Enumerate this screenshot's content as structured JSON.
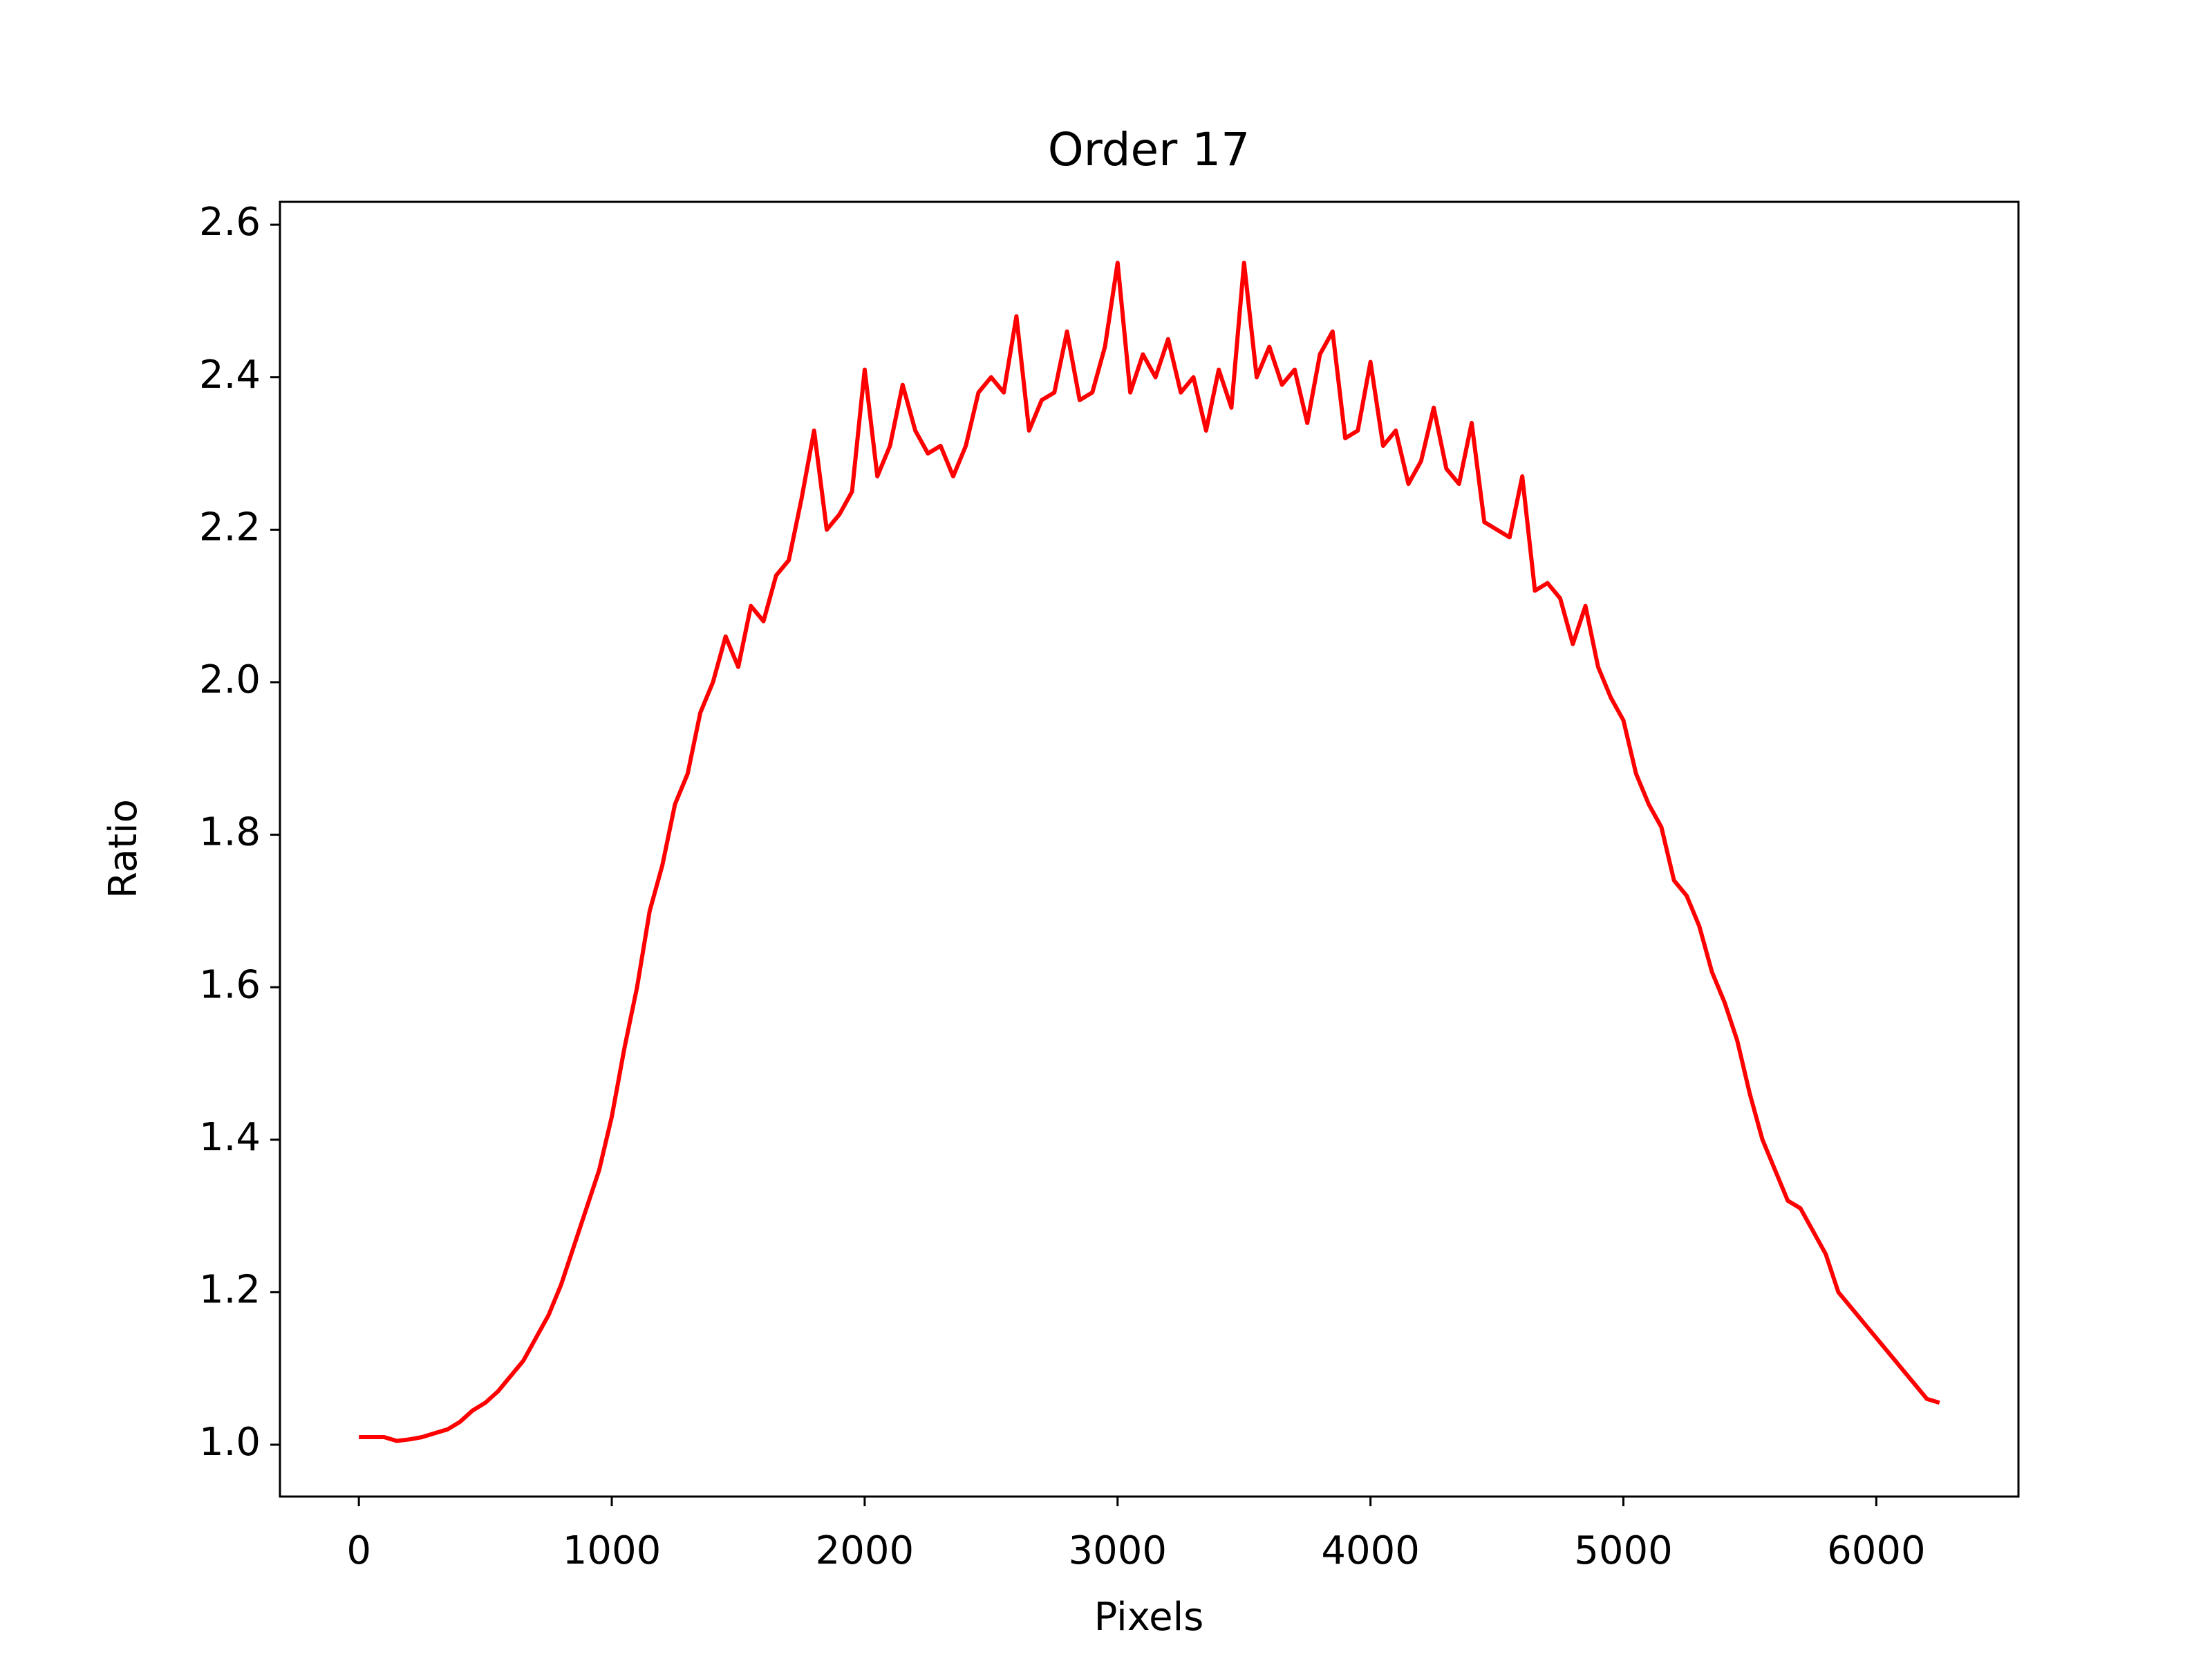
{
  "chart_data": {
    "type": "line",
    "title": "Order 17",
    "xlabel": "Pixels",
    "ylabel": "Ratio",
    "x": [
      0,
      50,
      100,
      150,
      200,
      250,
      300,
      350,
      400,
      450,
      500,
      550,
      600,
      650,
      700,
      750,
      800,
      850,
      900,
      950,
      1000,
      1050,
      1100,
      1150,
      1200,
      1250,
      1300,
      1350,
      1400,
      1450,
      1500,
      1550,
      1600,
      1650,
      1700,
      1750,
      1800,
      1850,
      1900,
      1950,
      2000,
      2050,
      2100,
      2150,
      2200,
      2250,
      2300,
      2350,
      2400,
      2450,
      2500,
      2550,
      2600,
      2650,
      2700,
      2750,
      2800,
      2850,
      2900,
      2950,
      3000,
      3050,
      3100,
      3150,
      3200,
      3250,
      3300,
      3350,
      3400,
      3450,
      3500,
      3550,
      3600,
      3650,
      3700,
      3750,
      3800,
      3850,
      3900,
      3950,
      4000,
      4050,
      4100,
      4150,
      4200,
      4250,
      4300,
      4350,
      4400,
      4450,
      4500,
      4550,
      4600,
      4650,
      4700,
      4750,
      4800,
      4850,
      4900,
      4950,
      5000,
      5050,
      5100,
      5150,
      5200,
      5250,
      5300,
      5350,
      5400,
      5450,
      5500,
      5550,
      5600,
      5650,
      5700,
      5750,
      5800,
      5850,
      5900,
      5950,
      6000,
      6050,
      6100,
      6150,
      6200,
      6250
    ],
    "series": [
      {
        "color": "#ff0000",
        "values": [
          1.01,
          1.01,
          1.01,
          1.005,
          1.007,
          1.01,
          1.015,
          1.02,
          1.03,
          1.045,
          1.055,
          1.07,
          1.09,
          1.11,
          1.14,
          1.17,
          1.21,
          1.26,
          1.31,
          1.36,
          1.43,
          1.52,
          1.6,
          1.7,
          1.76,
          1.84,
          1.88,
          1.96,
          2.0,
          2.06,
          2.02,
          2.1,
          2.08,
          2.14,
          2.16,
          2.24,
          2.33,
          2.2,
          2.22,
          2.25,
          2.41,
          2.27,
          2.31,
          2.39,
          2.33,
          2.3,
          2.31,
          2.27,
          2.31,
          2.38,
          2.4,
          2.38,
          2.48,
          2.33,
          2.37,
          2.38,
          2.46,
          2.37,
          2.38,
          2.44,
          2.55,
          2.38,
          2.43,
          2.4,
          2.45,
          2.38,
          2.4,
          2.33,
          2.41,
          2.36,
          2.55,
          2.4,
          2.44,
          2.39,
          2.41,
          2.34,
          2.43,
          2.46,
          2.32,
          2.33,
          2.42,
          2.31,
          2.33,
          2.26,
          2.29,
          2.36,
          2.28,
          2.26,
          2.34,
          2.21,
          2.2,
          2.19,
          2.27,
          2.12,
          2.13,
          2.11,
          2.05,
          2.1,
          2.02,
          1.98,
          1.95,
          1.88,
          1.84,
          1.81,
          1.74,
          1.72,
          1.68,
          1.62,
          1.58,
          1.53,
          1.46,
          1.4,
          1.36,
          1.32,
          1.31,
          1.28,
          1.25,
          1.2,
          1.18,
          1.16,
          1.14,
          1.12,
          1.1,
          1.08,
          1.06,
          1.055
        ]
      }
    ],
    "xlim": [
      -312,
      6562
    ],
    "ylim": [
      0.932,
      2.63
    ],
    "xticks": [
      0,
      1000,
      2000,
      3000,
      4000,
      5000,
      6000
    ],
    "yticks": [
      {
        "value": 1.0,
        "label": "1.0"
      },
      {
        "value": 1.2,
        "label": "1.2"
      },
      {
        "value": 1.4,
        "label": "1.4"
      },
      {
        "value": 1.6,
        "label": "1.6"
      },
      {
        "value": 1.8,
        "label": "1.8"
      },
      {
        "value": 2.0,
        "label": "2.0"
      },
      {
        "value": 2.2,
        "label": "2.2"
      },
      {
        "value": 2.4,
        "label": "2.4"
      },
      {
        "value": 2.6,
        "label": "2.6"
      }
    ]
  }
}
